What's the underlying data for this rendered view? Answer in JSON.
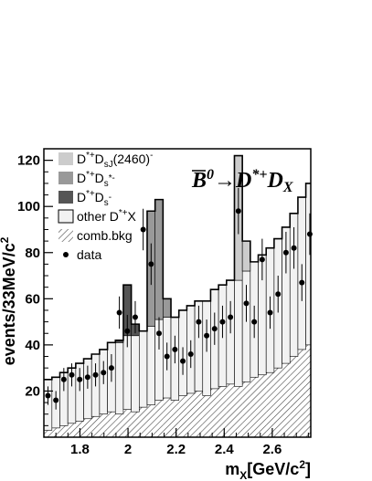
{
  "chart_data": {
    "type": "histogram",
    "title": "",
    "xlabel": "m_X[GeV/c^2]",
    "ylabel": "events/33MeV/c^2",
    "xlim": [
      1.65,
      2.76
    ],
    "ylim": [
      0,
      125
    ],
    "x_ticks": [
      1.8,
      2.0,
      2.2,
      2.4,
      2.6
    ],
    "x_tick_labels": [
      "1.8",
      "2",
      "2.2",
      "2.4",
      "2.6"
    ],
    "y_ticks": [
      20,
      40,
      60,
      80,
      100,
      120
    ],
    "y_tick_labels": [
      "20",
      "40",
      "60",
      "80",
      "100",
      "120"
    ],
    "bin_width": 0.033,
    "bin_centers": [
      1.667,
      1.7,
      1.733,
      1.766,
      1.799,
      1.832,
      1.865,
      1.898,
      1.931,
      1.964,
      1.997,
      2.03,
      2.063,
      2.096,
      2.129,
      2.162,
      2.195,
      2.228,
      2.261,
      2.294,
      2.327,
      2.36,
      2.393,
      2.426,
      2.459,
      2.492,
      2.525,
      2.558,
      2.591,
      2.624,
      2.657,
      2.69,
      2.723,
      2.756
    ],
    "annotation": {
      "parts": [
        {
          "text": "B",
          "overline": true
        },
        {
          "text": "0",
          "sup": true
        },
        {
          "text": "→D"
        },
        {
          "text": "*+",
          "sup": true
        },
        {
          "text": "D"
        },
        {
          "text": "X",
          "sub": true
        }
      ]
    },
    "legend_position": "top-left",
    "series": [
      {
        "name": "comb.bkg",
        "style": "hatched",
        "color": "#555555",
        "values": [
          3,
          4,
          5,
          6,
          7,
          8,
          9,
          10,
          11,
          10,
          12,
          11,
          13,
          14,
          16,
          17,
          16,
          18,
          19,
          20,
          18,
          21,
          22,
          23,
          22,
          24,
          26,
          27,
          28,
          30,
          32,
          35,
          38,
          40
        ]
      },
      {
        "name": "other D*+X",
        "style": "fill",
        "color": "#f2f2f2",
        "values": [
          22,
          22,
          23,
          24,
          25,
          26,
          27,
          28,
          30,
          31,
          32,
          33,
          33,
          34,
          35,
          35,
          36,
          37,
          38,
          39,
          41,
          43,
          44,
          45,
          46,
          48,
          50,
          52,
          54,
          56,
          59,
          62,
          66,
          70
        ]
      },
      {
        "name": "D*+Ds-",
        "style": "fill",
        "color": "#555555",
        "values": [
          0,
          0,
          0,
          0,
          0,
          0,
          0,
          0,
          0,
          1,
          22,
          5,
          0,
          0,
          0,
          0,
          0,
          0,
          0,
          0,
          0,
          0,
          0,
          0,
          0,
          0,
          0,
          0,
          0,
          0,
          0,
          0,
          0,
          0
        ]
      },
      {
        "name": "D*+Ds*-",
        "style": "fill",
        "color": "#999999",
        "values": [
          0,
          0,
          0,
          0,
          0,
          0,
          0,
          0,
          0,
          0,
          0,
          0,
          0,
          50,
          52,
          8,
          0,
          0,
          0,
          0,
          0,
          0,
          0,
          0,
          0,
          0,
          0,
          0,
          0,
          0,
          0,
          0,
          0,
          0
        ]
      },
      {
        "name": "D*+DsJ(2460)-",
        "style": "fill",
        "color": "#cccccc",
        "values": [
          0,
          0,
          0,
          0,
          0,
          0,
          0,
          0,
          0,
          0,
          0,
          0,
          0,
          0,
          0,
          0,
          0,
          0,
          0,
          0,
          0,
          0,
          0,
          0,
          54,
          13,
          0,
          0,
          0,
          0,
          0,
          0,
          0,
          0
        ]
      }
    ],
    "data_points": {
      "name": "data",
      "x": [
        1.667,
        1.7,
        1.733,
        1.766,
        1.799,
        1.832,
        1.865,
        1.898,
        1.931,
        1.964,
        1.997,
        2.03,
        2.063,
        2.096,
        2.129,
        2.162,
        2.195,
        2.228,
        2.261,
        2.294,
        2.327,
        2.36,
        2.393,
        2.426,
        2.459,
        2.492,
        2.525,
        2.558,
        2.591,
        2.624,
        2.657,
        2.69,
        2.723,
        2.756
      ],
      "y": [
        18,
        16,
        25,
        27,
        25,
        26,
        27,
        28,
        30,
        54,
        46,
        52,
        90,
        75,
        45,
        35,
        38,
        33,
        36,
        50,
        44,
        47,
        50,
        52,
        98,
        58,
        50,
        77,
        54,
        62,
        80,
        82,
        67,
        88
      ],
      "yerr": [
        4,
        4,
        5,
        5,
        5,
        5,
        5,
        5,
        6,
        7,
        7,
        7,
        9,
        9,
        7,
        6,
        6,
        6,
        6,
        7,
        7,
        7,
        7,
        7,
        10,
        8,
        7,
        9,
        7,
        8,
        9,
        9,
        8,
        9
      ]
    }
  }
}
